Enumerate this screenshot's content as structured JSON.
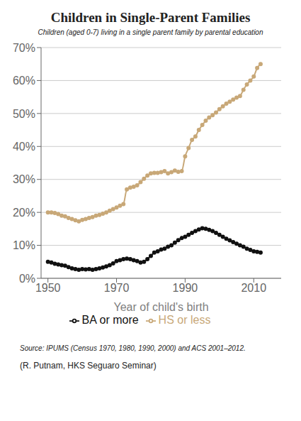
{
  "chart_data": {
    "type": "line",
    "title": "Children in Single-Parent Families",
    "subtitle": "Children (aged 0-7) living in a single parent family by parental education",
    "xlabel": "Year of child's birth",
    "annotations": [
      "Source: IPUMS (Census 1970, 1980, 1990, 2000) and ACS 2001–2012.",
      "(R. Putnam, HKS Seguaro Seminar)"
    ],
    "x": [
      1950,
      1951,
      1952,
      1953,
      1954,
      1955,
      1956,
      1957,
      1958,
      1959,
      1960,
      1961,
      1962,
      1963,
      1964,
      1965,
      1966,
      1967,
      1968,
      1969,
      1970,
      1971,
      1972,
      1973,
      1974,
      1975,
      1976,
      1977,
      1978,
      1979,
      1980,
      1981,
      1982,
      1983,
      1984,
      1985,
      1986,
      1987,
      1988,
      1989,
      1990,
      1991,
      1992,
      1993,
      1994,
      1995,
      1996,
      1997,
      1998,
      1999,
      2000,
      2001,
      2002,
      2003,
      2004,
      2005,
      2006,
      2007,
      2008,
      2009,
      2010,
      2011,
      2012
    ],
    "series": [
      {
        "name": "BA or more",
        "color": "#111111",
        "marker": "circle",
        "values": [
          0.05,
          0.048,
          0.044,
          0.042,
          0.04,
          0.038,
          0.034,
          0.03,
          0.028,
          0.026,
          0.028,
          0.027,
          0.028,
          0.026,
          0.028,
          0.03,
          0.033,
          0.036,
          0.04,
          0.045,
          0.052,
          0.055,
          0.058,
          0.06,
          0.058,
          0.055,
          0.052,
          0.048,
          0.05,
          0.058,
          0.068,
          0.078,
          0.082,
          0.087,
          0.09,
          0.096,
          0.1,
          0.108,
          0.116,
          0.122,
          0.126,
          0.132,
          0.138,
          0.143,
          0.148,
          0.152,
          0.15,
          0.147,
          0.143,
          0.138,
          0.132,
          0.126,
          0.12,
          0.115,
          0.11,
          0.105,
          0.1,
          0.096,
          0.09,
          0.086,
          0.082,
          0.08,
          0.078
        ]
      },
      {
        "name": "HS or less",
        "color": "#c8a878",
        "marker": "circle",
        "values": [
          0.2,
          0.2,
          0.198,
          0.195,
          0.19,
          0.188,
          0.183,
          0.18,
          0.176,
          0.173,
          0.177,
          0.18,
          0.183,
          0.186,
          0.19,
          0.192,
          0.196,
          0.2,
          0.205,
          0.21,
          0.215,
          0.22,
          0.225,
          0.27,
          0.275,
          0.278,
          0.282,
          0.292,
          0.302,
          0.312,
          0.318,
          0.32,
          0.32,
          0.322,
          0.325,
          0.318,
          0.322,
          0.327,
          0.323,
          0.325,
          0.37,
          0.395,
          0.42,
          0.43,
          0.45,
          0.465,
          0.478,
          0.488,
          0.495,
          0.503,
          0.513,
          0.522,
          0.53,
          0.536,
          0.542,
          0.548,
          0.553,
          0.572,
          0.588,
          0.6,
          0.612,
          0.638,
          0.65
        ]
      }
    ],
    "xlim": [
      1948,
      2018
    ],
    "xticks": [
      1950,
      1970,
      1990,
      2010
    ],
    "ylim": [
      0,
      0.7
    ],
    "yticks": [
      {
        "value": 0.0,
        "label": "0%"
      },
      {
        "value": 0.1,
        "label": "10%"
      },
      {
        "value": 0.2,
        "label": "20%"
      },
      {
        "value": 0.3,
        "label": "30%"
      },
      {
        "value": 0.4,
        "label": "40%"
      },
      {
        "value": 0.5,
        "label": "50%"
      },
      {
        "value": 0.6,
        "label": "60%"
      },
      {
        "value": 0.7,
        "label": "70%"
      }
    ],
    "grid": true,
    "legend": "bottom"
  }
}
